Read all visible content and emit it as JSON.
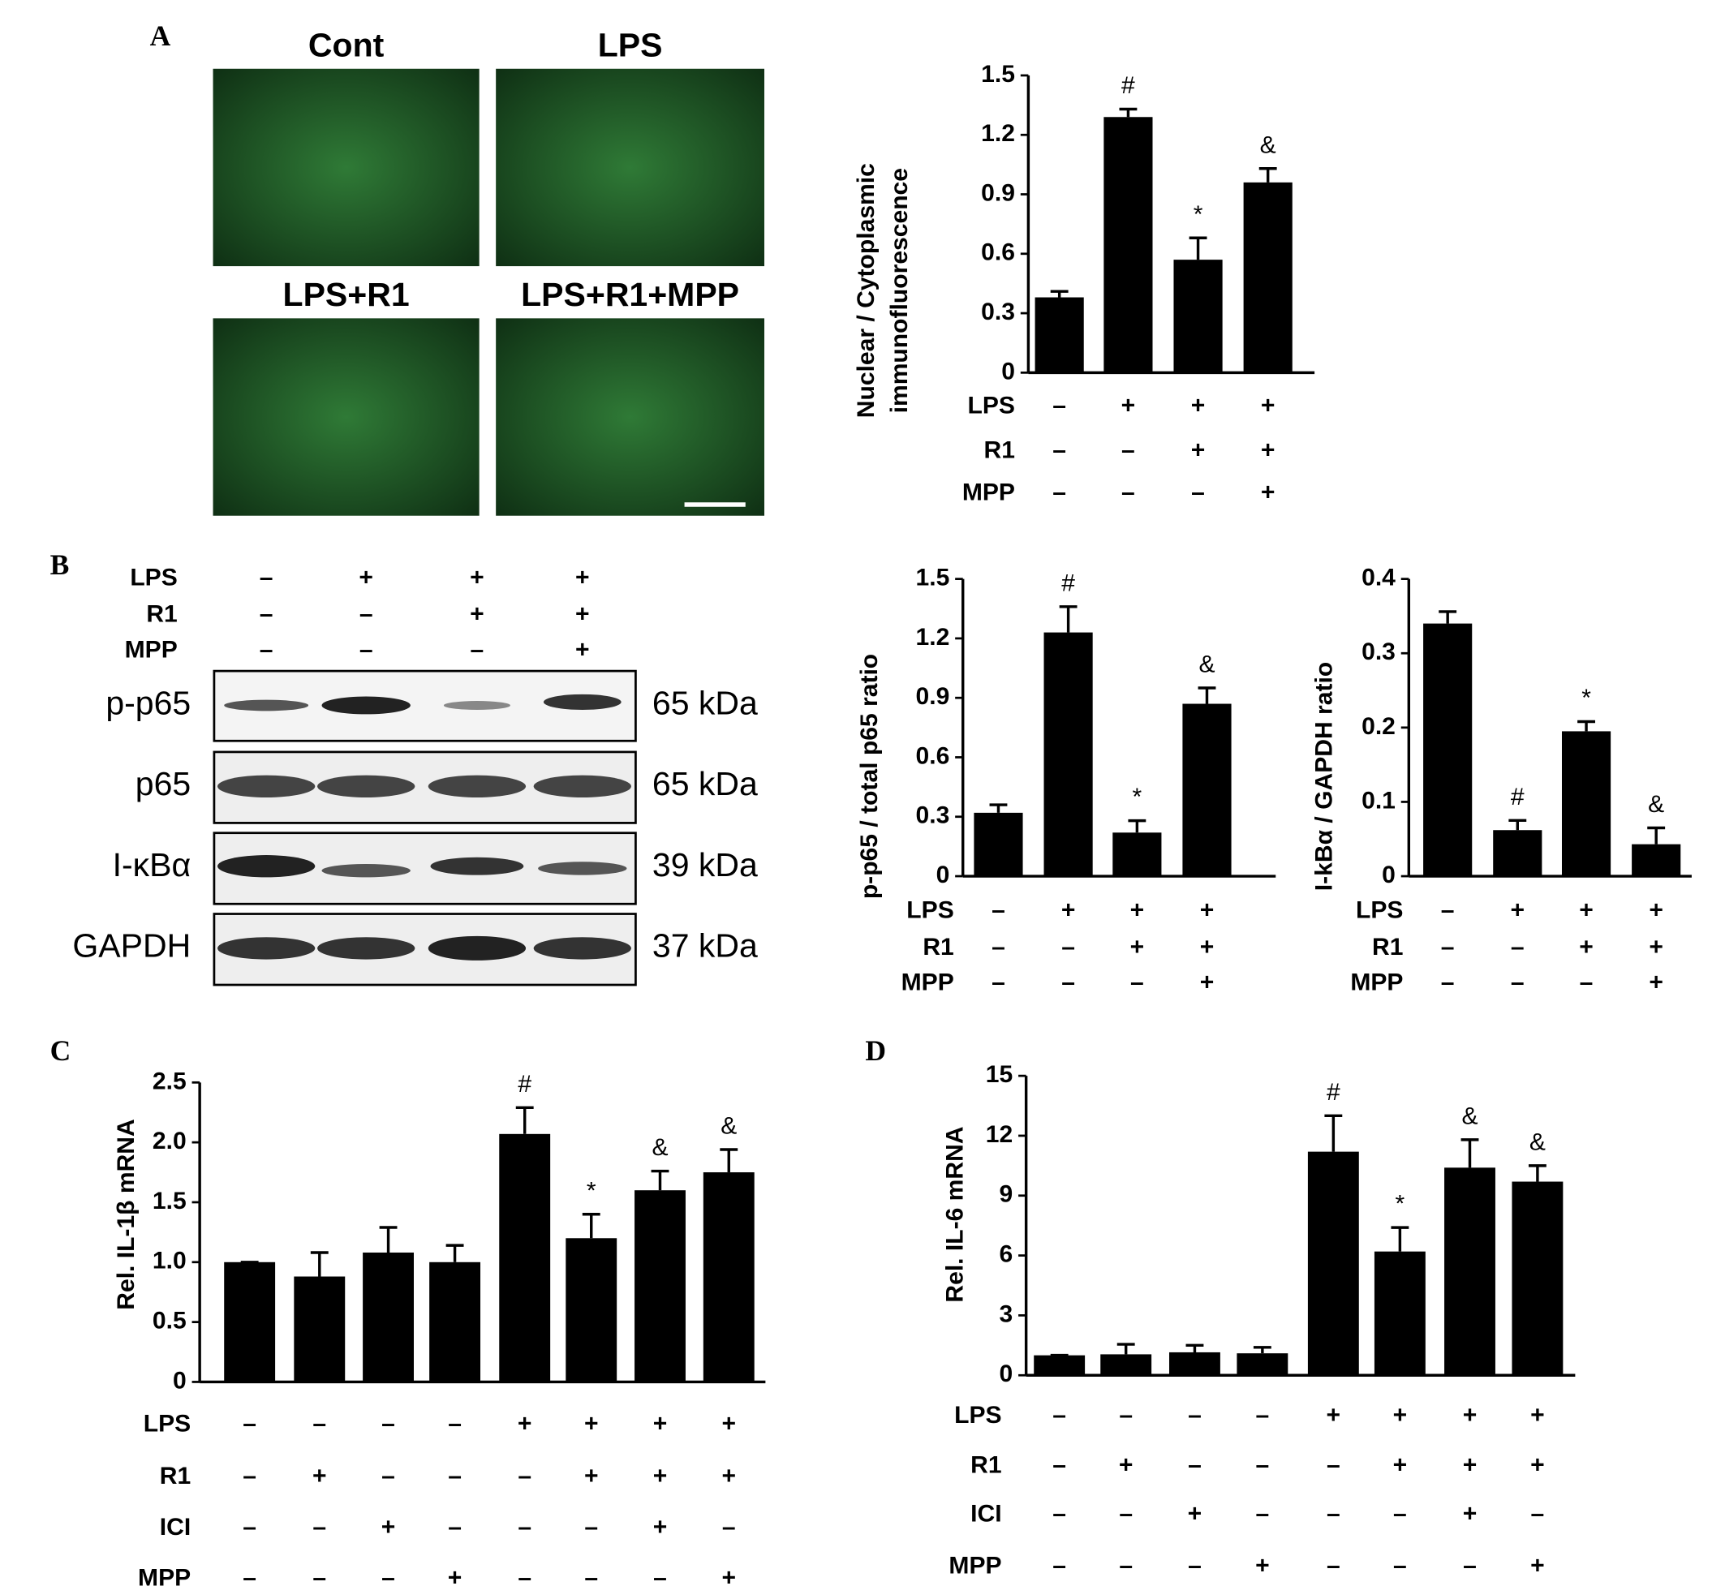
{
  "panels": {
    "A": "A",
    "B": "B",
    "C": "C",
    "D": "D"
  },
  "micrographs": [
    "Cont",
    "LPS",
    "LPS+R1",
    "LPS+R1+MPP"
  ],
  "blot": {
    "conditions": [
      {
        "name": "LPS",
        "values": [
          "–",
          "+",
          "+",
          "+"
        ]
      },
      {
        "name": "R1",
        "values": [
          "–",
          "–",
          "+",
          "+"
        ]
      },
      {
        "name": "MPP",
        "values": [
          "–",
          "–",
          "–",
          "+"
        ]
      }
    ],
    "rows": [
      {
        "label": "p-p65",
        "size": "65 kDa"
      },
      {
        "label": "p65",
        "size": "65 kDa"
      },
      {
        "label": "I-κBα",
        "size": "39 kDa"
      },
      {
        "label": "GAPDH",
        "size": "37 kDa"
      }
    ]
  },
  "chart_data": [
    {
      "type": "bar",
      "ylabel": [
        "Nuclear / Cytoplasmic",
        "immunofluorescence"
      ],
      "color": "#000000",
      "values": [
        0.38,
        1.29,
        0.57,
        0.96
      ],
      "errors": [
        0.03,
        0.04,
        0.11,
        0.07
      ],
      "annotations": [
        null,
        "#",
        "*",
        "&"
      ],
      "conditions": [
        {
          "name": "LPS",
          "values": [
            "–",
            "+",
            "+",
            "+"
          ]
        },
        {
          "name": "R1",
          "values": [
            "–",
            "–",
            "+",
            "+"
          ]
        },
        {
          "name": "MPP",
          "values": [
            "–",
            "–",
            "–",
            "+"
          ]
        }
      ],
      "ylim": [
        0,
        1.5
      ],
      "yticks": [
        0,
        0.3,
        0.6,
        0.9,
        1.2,
        1.5
      ]
    },
    {
      "type": "bar",
      "ylabel": [
        "p-p65 / total p65 ratio"
      ],
      "color": "#000000",
      "values": [
        0.32,
        1.23,
        0.22,
        0.87
      ],
      "errors": [
        0.04,
        0.13,
        0.06,
        0.08
      ],
      "annotations": [
        null,
        "#",
        "*",
        "&"
      ],
      "conditions": [
        {
          "name": "LPS",
          "values": [
            "–",
            "+",
            "+",
            "+"
          ]
        },
        {
          "name": "R1",
          "values": [
            "–",
            "–",
            "+",
            "+"
          ]
        },
        {
          "name": "MPP",
          "values": [
            "–",
            "–",
            "–",
            "+"
          ]
        }
      ],
      "ylim": [
        0,
        1.5
      ],
      "yticks": [
        0,
        0.3,
        0.6,
        0.9,
        1.2,
        1.5
      ]
    },
    {
      "type": "bar",
      "ylabel": [
        "I-kBα / GAPDH ratio"
      ],
      "color": "#000000",
      "values": [
        0.34,
        0.062,
        0.195,
        0.043
      ],
      "errors": [
        0.016,
        0.013,
        0.013,
        0.022
      ],
      "annotations": [
        null,
        "#",
        "*",
        "&"
      ],
      "conditions": [
        {
          "name": "LPS",
          "values": [
            "–",
            "+",
            "+",
            "+"
          ]
        },
        {
          "name": "R1",
          "values": [
            "–",
            "–",
            "+",
            "+"
          ]
        },
        {
          "name": "MPP",
          "values": [
            "–",
            "–",
            "–",
            "+"
          ]
        }
      ],
      "ylim": [
        0,
        0.4
      ],
      "yticks": [
        0,
        0.1,
        0.2,
        0.3,
        0.4
      ]
    },
    {
      "type": "bar",
      "ylabel": [
        "Rel. IL-1β mRNA"
      ],
      "color": "#000000",
      "values": [
        1.0,
        0.88,
        1.08,
        1.0,
        2.07,
        1.2,
        1.6,
        1.75
      ],
      "errors": [
        0,
        0.2,
        0.21,
        0.14,
        0.22,
        0.2,
        0.16,
        0.19
      ],
      "annotations": [
        null,
        null,
        null,
        null,
        "#",
        "*",
        "&",
        "&"
      ],
      "conditions": [
        {
          "name": "LPS",
          "values": [
            "–",
            "–",
            "–",
            "–",
            "+",
            "+",
            "+",
            "+"
          ]
        },
        {
          "name": "R1",
          "values": [
            "–",
            "+",
            "–",
            "–",
            "–",
            "+",
            "+",
            "+"
          ]
        },
        {
          "name": "ICI",
          "values": [
            "–",
            "–",
            "+",
            "–",
            "–",
            "–",
            "+",
            "–"
          ]
        },
        {
          "name": "MPP",
          "values": [
            "–",
            "–",
            "–",
            "+",
            "–",
            "–",
            "–",
            "+"
          ]
        }
      ],
      "ylim": [
        0,
        2.5
      ],
      "yticks": [
        0,
        0.5,
        {
          "value": 1,
          "label": "1.0"
        },
        1.5,
        {
          "value": 2,
          "label": "2.0"
        },
        2.5
      ]
    },
    {
      "type": "bar",
      "ylabel": [
        "Rel. IL-6 mRNA"
      ],
      "color": "#000000",
      "values": [
        1.0,
        1.05,
        1.15,
        1.1,
        11.2,
        6.2,
        10.4,
        9.7
      ],
      "errors": [
        0,
        0.5,
        0.35,
        0.3,
        1.8,
        1.2,
        1.4,
        0.8
      ],
      "annotations": [
        null,
        null,
        null,
        null,
        "#",
        "*",
        "&",
        "&"
      ],
      "conditions": [
        {
          "name": "LPS",
          "values": [
            "–",
            "–",
            "–",
            "–",
            "+",
            "+",
            "+",
            "+"
          ]
        },
        {
          "name": "R1",
          "values": [
            "–",
            "+",
            "–",
            "–",
            "–",
            "+",
            "+",
            "+"
          ]
        },
        {
          "name": "ICI",
          "values": [
            "–",
            "–",
            "+",
            "–",
            "–",
            "–",
            "+",
            "–"
          ]
        },
        {
          "name": "MPP",
          "values": [
            "–",
            "–",
            "–",
            "+",
            "–",
            "–",
            "–",
            "+"
          ]
        }
      ],
      "ylim": [
        0,
        15
      ],
      "yticks": [
        0,
        3,
        6,
        9,
        12,
        15
      ]
    }
  ]
}
